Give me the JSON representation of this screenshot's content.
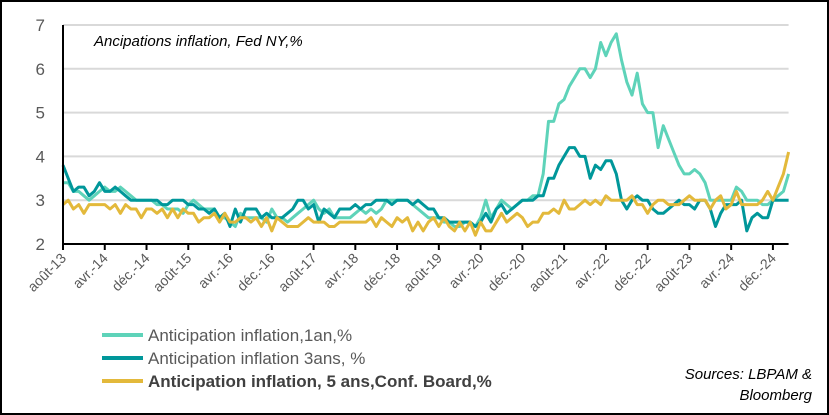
{
  "chart_data": {
    "type": "line",
    "title": "Ancipations inflation, Fed NY,%",
    "source": [
      "Sources: LBPAM &",
      "Bloomberg"
    ],
    "x_start": "2013-08",
    "x_frequency": "monthly",
    "x_tick_labels": [
      "août-13",
      "avr.-14",
      "déc.-14",
      "août-15",
      "avr.-16",
      "déc.-16",
      "août-17",
      "avr.-18",
      "déc.-18",
      "août-19",
      "avr.-20",
      "déc.-20",
      "août-21",
      "avr.-22",
      "déc.-22",
      "août-23",
      "avr.-24",
      "déc.-24"
    ],
    "y_ticks": [
      2,
      3,
      4,
      5,
      6,
      7
    ],
    "ylim": [
      2,
      7
    ],
    "grid": "horizontal",
    "legend_position": "bottom-left",
    "series": [
      {
        "name": "Anticipation inflation,1an,%",
        "color": "#5ed3b9",
        "bold": false,
        "values": [
          3.4,
          3.4,
          3.2,
          3.2,
          3.1,
          3.0,
          3.1,
          3.2,
          3.3,
          3.2,
          3.2,
          3.3,
          3.2,
          3.1,
          3.0,
          3.0,
          3.0,
          3.0,
          2.9,
          2.9,
          2.8,
          2.8,
          2.8,
          2.7,
          2.9,
          3.0,
          2.9,
          2.8,
          2.8,
          2.8,
          2.6,
          2.6,
          2.5,
          2.4,
          2.7,
          2.6,
          2.6,
          2.6,
          2.6,
          2.5,
          2.8,
          2.6,
          2.6,
          2.5,
          2.6,
          2.7,
          2.8,
          2.9,
          3.0,
          2.8,
          2.7,
          2.8,
          2.6,
          2.6,
          2.6,
          2.6,
          2.7,
          2.8,
          2.7,
          2.8,
          2.7,
          2.8,
          3.0,
          3.0,
          3.0,
          3.0,
          3.0,
          2.9,
          2.8,
          2.7,
          2.6,
          2.6,
          2.6,
          2.5,
          2.5,
          2.4,
          2.4,
          2.5,
          2.5,
          2.4,
          2.6,
          3.0,
          2.6,
          2.8,
          3.0,
          2.9,
          2.8,
          2.9,
          3.0,
          3.0,
          3.1,
          3.1,
          3.6,
          4.8,
          4.8,
          5.2,
          5.3,
          5.6,
          5.8,
          6.0,
          6.0,
          5.8,
          6.0,
          6.6,
          6.3,
          6.6,
          6.8,
          6.2,
          5.7,
          5.4,
          5.9,
          5.2,
          5.0,
          5.0,
          4.2,
          4.7,
          4.4,
          4.1,
          3.8,
          3.6,
          3.6,
          3.7,
          3.6,
          3.4,
          3.0,
          3.0,
          3.0,
          3.0,
          3.0,
          3.3,
          3.2,
          3.0,
          3.0,
          3.0,
          2.9,
          2.9,
          3.0,
          3.1,
          3.2,
          3.6
        ]
      },
      {
        "name": "Anticipation inflation 3ans, %",
        "color": "#00979a",
        "bold": false,
        "values": [
          3.8,
          3.5,
          3.2,
          3.3,
          3.3,
          3.1,
          3.2,
          3.4,
          3.2,
          3.2,
          3.3,
          3.2,
          3.1,
          3.0,
          3.0,
          3.0,
          3.0,
          3.0,
          3.0,
          2.9,
          2.9,
          3.0,
          3.0,
          3.0,
          2.9,
          2.9,
          2.8,
          2.8,
          2.7,
          2.8,
          2.6,
          2.7,
          2.4,
          2.8,
          2.5,
          2.8,
          2.8,
          2.8,
          2.6,
          2.7,
          2.6,
          2.6,
          2.6,
          2.7,
          2.8,
          3.0,
          3.0,
          2.8,
          2.9,
          2.5,
          2.8,
          2.7,
          2.6,
          2.8,
          2.8,
          2.8,
          2.9,
          2.8,
          2.9,
          2.9,
          3.0,
          3.0,
          3.0,
          2.9,
          3.0,
          3.0,
          3.0,
          2.9,
          3.0,
          2.9,
          2.8,
          2.8,
          2.6,
          2.6,
          2.5,
          2.5,
          2.5,
          2.5,
          2.5,
          2.4,
          2.5,
          2.7,
          2.5,
          2.8,
          2.9,
          2.7,
          2.8,
          2.9,
          3.0,
          3.0,
          3.0,
          3.1,
          3.1,
          3.5,
          3.5,
          3.8,
          4.0,
          4.2,
          4.2,
          4.0,
          4.0,
          3.5,
          3.8,
          3.7,
          3.9,
          3.9,
          3.6,
          3.0,
          2.8,
          3.0,
          3.1,
          3.0,
          3.0,
          2.8,
          2.7,
          2.7,
          2.8,
          2.9,
          3.0,
          2.9,
          2.9,
          2.8,
          3.0,
          3.0,
          2.8,
          2.4,
          2.7,
          2.9,
          2.9,
          2.9,
          3.0,
          2.3,
          2.6,
          2.7,
          2.6,
          2.6,
          3.0,
          3.0,
          3.0,
          3.0
        ]
      },
      {
        "name": "Anticipation inflation, 5 ans,Conf. Board,%",
        "color": "#e3b93b",
        "bold": true,
        "values": [
          2.9,
          3.0,
          2.8,
          2.9,
          2.7,
          2.9,
          2.9,
          2.9,
          2.9,
          2.8,
          2.9,
          2.7,
          2.9,
          2.8,
          2.8,
          2.6,
          2.8,
          2.8,
          2.7,
          2.8,
          2.6,
          2.8,
          2.6,
          2.8,
          2.7,
          2.7,
          2.5,
          2.6,
          2.6,
          2.7,
          2.5,
          2.7,
          2.5,
          2.5,
          2.6,
          2.6,
          2.5,
          2.6,
          2.4,
          2.6,
          2.3,
          2.6,
          2.5,
          2.4,
          2.4,
          2.4,
          2.5,
          2.6,
          2.5,
          2.5,
          2.5,
          2.4,
          2.4,
          2.5,
          2.5,
          2.5,
          2.5,
          2.5,
          2.5,
          2.6,
          2.4,
          2.6,
          2.5,
          2.4,
          2.6,
          2.5,
          2.6,
          2.3,
          2.5,
          2.3,
          2.5,
          2.6,
          2.4,
          2.6,
          2.4,
          2.3,
          2.5,
          2.3,
          2.5,
          2.2,
          2.5,
          2.3,
          2.3,
          2.5,
          2.7,
          2.5,
          2.6,
          2.7,
          2.6,
          2.4,
          2.5,
          2.5,
          2.7,
          2.7,
          2.8,
          2.7,
          3.0,
          2.8,
          2.8,
          2.9,
          3.0,
          2.9,
          3.0,
          2.9,
          3.1,
          3.0,
          3.0,
          3.0,
          3.0,
          3.1,
          2.9,
          2.9,
          2.7,
          2.9,
          3.0,
          3.0,
          2.9,
          2.9,
          2.9,
          3.0,
          3.1,
          3.0,
          3.0,
          3.0,
          2.8,
          3.0,
          3.1,
          2.8,
          2.9,
          3.2,
          2.9,
          2.9,
          2.9,
          2.9,
          3.0,
          3.2,
          3.0,
          3.3,
          3.6,
          4.1
        ]
      }
    ]
  }
}
